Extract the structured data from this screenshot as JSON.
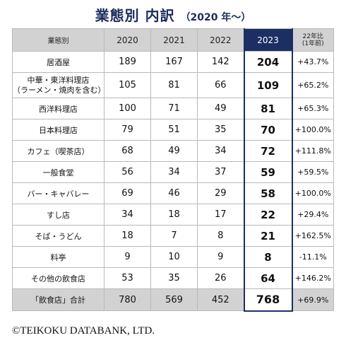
{
  "title": "業態別 内訳",
  "subtitle": "（2020 年～）",
  "copyright": "©TEIKOKU DATABANK, LTD.",
  "colors": {
    "title": "#1a2e5c",
    "highlight": "#1c2f63",
    "header_bg": "#d2d2d2"
  },
  "chart_data": {
    "type": "table",
    "title": "業態別 内訳（2020 年～）",
    "columns": [
      "業態別",
      "2020",
      "2021",
      "2022",
      "2023",
      "22年比\n(1年前)"
    ],
    "rows": [
      {
        "category": "居酒屋",
        "y2020": "189",
        "y2021": "167",
        "y2022": "142",
        "y2023": "204",
        "change": "+43.7%"
      },
      {
        "category": "中華・東洋料理店\n（ラーメン・焼肉を含む）",
        "y2020": "105",
        "y2021": "81",
        "y2022": "66",
        "y2023": "109",
        "change": "+65.2%"
      },
      {
        "category": "西洋料理店",
        "y2020": "100",
        "y2021": "71",
        "y2022": "49",
        "y2023": "81",
        "change": "+65.3%"
      },
      {
        "category": "日本料理店",
        "y2020": "79",
        "y2021": "51",
        "y2022": "35",
        "y2023": "70",
        "change": "+100.0%"
      },
      {
        "category": "カフェ（喫茶店）",
        "y2020": "68",
        "y2021": "49",
        "y2022": "34",
        "y2023": "72",
        "change": "+111.8%"
      },
      {
        "category": "一般食堂",
        "y2020": "56",
        "y2021": "34",
        "y2022": "37",
        "y2023": "59",
        "change": "+59.5%"
      },
      {
        "category": "バー・キャバレー",
        "y2020": "69",
        "y2021": "46",
        "y2022": "29",
        "y2023": "58",
        "change": "+100.0%"
      },
      {
        "category": "すし店",
        "y2020": "34",
        "y2021": "18",
        "y2022": "17",
        "y2023": "22",
        "change": "+29.4%"
      },
      {
        "category": "そば・うどん",
        "y2020": "18",
        "y2021": "7",
        "y2022": "8",
        "y2023": "21",
        "change": "+162.5%"
      },
      {
        "category": "料亭",
        "y2020": "9",
        "y2021": "10",
        "y2022": "9",
        "y2023": "8",
        "change": "-11.1%"
      },
      {
        "category": "その他の飲食店",
        "y2020": "53",
        "y2021": "35",
        "y2022": "26",
        "y2023": "64",
        "change": "+146.2%"
      }
    ],
    "total": {
      "category": "「飲食店」合計",
      "y2020": "780",
      "y2021": "569",
      "y2022": "452",
      "y2023": "768",
      "change": "+69.9%"
    }
  }
}
